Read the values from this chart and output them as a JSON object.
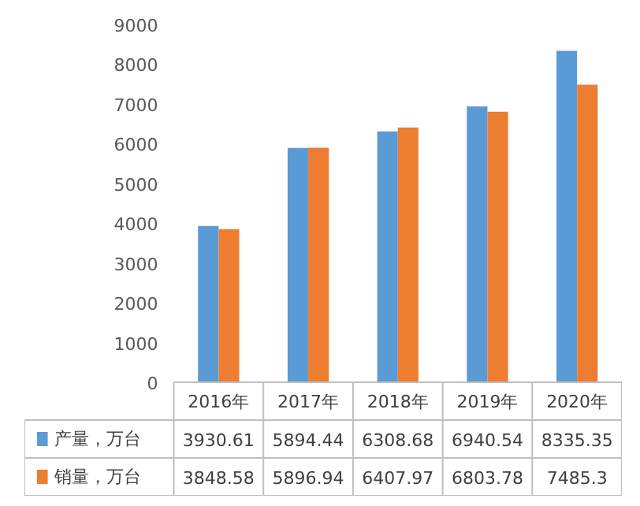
{
  "chart_data": {
    "type": "bar",
    "categories": [
      "2016年",
      "2017年",
      "2018年",
      "2019年",
      "2020年"
    ],
    "series": [
      {
        "name": "产量，万台",
        "color": "#5b9bd5",
        "values": [
          3930.61,
          5894.44,
          6308.68,
          6940.54,
          8335.35
        ]
      },
      {
        "name": "销量，万台",
        "color": "#ed7d31",
        "values": [
          3848.58,
          5896.94,
          6407.97,
          6803.78,
          7485.3
        ]
      }
    ],
    "ylim": [
      0,
      9000
    ],
    "yticks": [
      0,
      1000,
      2000,
      3000,
      4000,
      5000,
      6000,
      7000,
      8000,
      9000
    ],
    "grid": false,
    "legend": "bottom",
    "data_labels": true
  }
}
